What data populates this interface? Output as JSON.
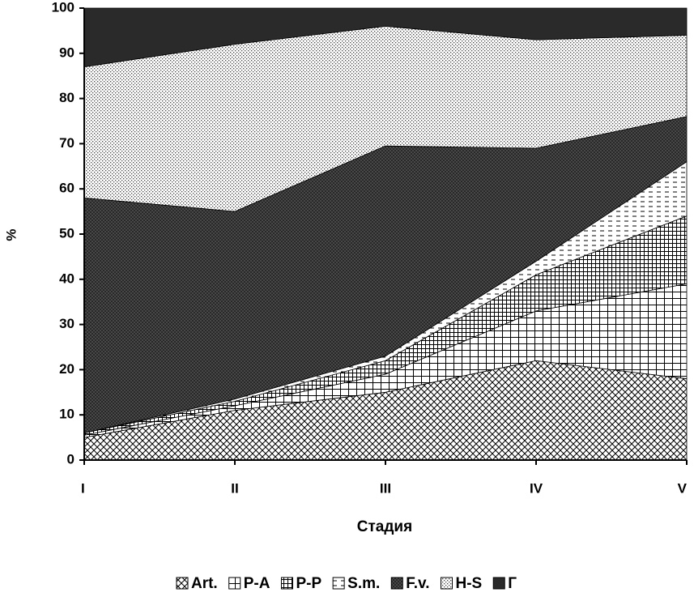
{
  "chart_data": {
    "type": "stacked_area",
    "y_label": "%",
    "x_label": "Стадия",
    "categories": [
      "I",
      "II",
      "III",
      "IV",
      "V"
    ],
    "ylim": [
      0,
      100
    ],
    "yticks": [
      0,
      10,
      20,
      30,
      40,
      50,
      60,
      70,
      80,
      90,
      100
    ],
    "series": [
      {
        "name": "Art.",
        "values": [
          5,
          11,
          15,
          22,
          18
        ]
      },
      {
        "name": "P-A",
        "values": [
          0.5,
          1,
          4,
          11,
          21
        ]
      },
      {
        "name": "P-P",
        "values": [
          0.5,
          1,
          3,
          8,
          15
        ]
      },
      {
        "name": "S.m.",
        "values": [
          0,
          0.5,
          1,
          3,
          12
        ]
      },
      {
        "name": "F.v.",
        "values": [
          52,
          41.5,
          46.5,
          25,
          10
        ]
      },
      {
        "name": "H-S",
        "values": [
          29,
          37,
          26.5,
          24,
          18
        ]
      },
      {
        "name": "Г",
        "values": [
          13,
          8,
          4,
          7,
          6
        ]
      }
    ]
  }
}
